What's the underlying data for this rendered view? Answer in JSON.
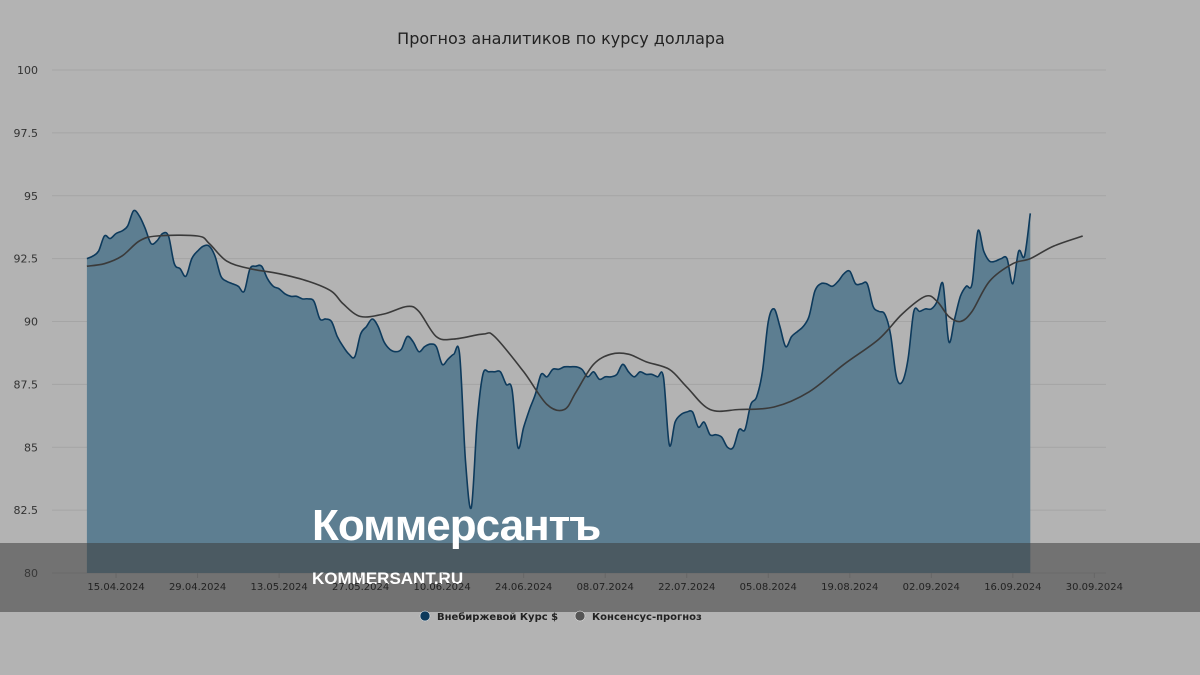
{
  "watermark": {
    "brand": "Коммерсантъ",
    "url": "KOMMERSANT.RU"
  },
  "colors": {
    "background": "#b3b3b3",
    "area_fill": "#587b8f",
    "series1_line": "#0d3a5c",
    "series2_line": "#3a3a3a",
    "grid": "#a5a5a5",
    "overlay_band": "#3d3d3d"
  },
  "chart_data": {
    "type": "area",
    "title": "Прогноз аналитиков по курсу доллара",
    "ylim": [
      80,
      100
    ],
    "yticks": [
      80,
      82.5,
      85,
      87.5,
      90,
      92.5,
      95,
      97.5,
      100
    ],
    "ytick_labels": [
      "80",
      "82.5",
      "85",
      "87.5",
      "90",
      "92.5",
      "95",
      "97.5",
      "100"
    ],
    "xlim": [
      "2024-04-04",
      "2024-10-02"
    ],
    "xticks": [
      "2024-04-15",
      "2024-04-29",
      "2024-05-13",
      "2024-05-27",
      "2024-06-10",
      "2024-06-24",
      "2024-07-08",
      "2024-07-22",
      "2024-08-05",
      "2024-08-19",
      "2024-09-02",
      "2024-09-16",
      "2024-09-30"
    ],
    "xtick_labels": [
      "15.04.2024",
      "29.04.2024",
      "13.05.2024",
      "27.05.2024",
      "10.06.2024",
      "24.06.2024",
      "08.07.2024",
      "22.07.2024",
      "05.08.2024",
      "19.08.2024",
      "02.09.2024",
      "16.09.2024",
      "30.09.2024"
    ],
    "grid": true,
    "legend_position": "bottom",
    "series": [
      {
        "name": "Внебиржевой Курс $",
        "type": "area",
        "points": [
          [
            "2024-04-10",
            92.5
          ],
          [
            "2024-04-11",
            92.6
          ],
          [
            "2024-04-12",
            92.8
          ],
          [
            "2024-04-13",
            93.4
          ],
          [
            "2024-04-14",
            93.3
          ],
          [
            "2024-04-15",
            93.5
          ],
          [
            "2024-04-16",
            93.6
          ],
          [
            "2024-04-17",
            93.8
          ],
          [
            "2024-04-18",
            94.4
          ],
          [
            "2024-04-19",
            94.2
          ],
          [
            "2024-04-20",
            93.7
          ],
          [
            "2024-04-21",
            93.1
          ],
          [
            "2024-04-22",
            93.2
          ],
          [
            "2024-04-23",
            93.5
          ],
          [
            "2024-04-24",
            93.4
          ],
          [
            "2024-04-25",
            92.3
          ],
          [
            "2024-04-26",
            92.1
          ],
          [
            "2024-04-27",
            91.8
          ],
          [
            "2024-04-28",
            92.5
          ],
          [
            "2024-04-29",
            92.8
          ],
          [
            "2024-04-30",
            93.0
          ],
          [
            "2024-05-01",
            93.0
          ],
          [
            "2024-05-02",
            92.6
          ],
          [
            "2024-05-03",
            91.8
          ],
          [
            "2024-05-04",
            91.6
          ],
          [
            "2024-05-05",
            91.5
          ],
          [
            "2024-05-06",
            91.4
          ],
          [
            "2024-05-07",
            91.2
          ],
          [
            "2024-05-08",
            92.1
          ],
          [
            "2024-05-09",
            92.2
          ],
          [
            "2024-05-10",
            92.2
          ],
          [
            "2024-05-11",
            91.7
          ],
          [
            "2024-05-12",
            91.4
          ],
          [
            "2024-05-13",
            91.3
          ],
          [
            "2024-05-14",
            91.1
          ],
          [
            "2024-05-15",
            91.0
          ],
          [
            "2024-05-16",
            91.0
          ],
          [
            "2024-05-17",
            90.9
          ],
          [
            "2024-05-18",
            90.9
          ],
          [
            "2024-05-19",
            90.8
          ],
          [
            "2024-05-20",
            90.1
          ],
          [
            "2024-05-21",
            90.1
          ],
          [
            "2024-05-22",
            90.0
          ],
          [
            "2024-05-23",
            89.4
          ],
          [
            "2024-05-24",
            89.0
          ],
          [
            "2024-05-25",
            88.7
          ],
          [
            "2024-05-26",
            88.6
          ],
          [
            "2024-05-27",
            89.5
          ],
          [
            "2024-05-28",
            89.8
          ],
          [
            "2024-05-29",
            90.1
          ],
          [
            "2024-05-30",
            89.8
          ],
          [
            "2024-05-31",
            89.2
          ],
          [
            "2024-06-01",
            88.9
          ],
          [
            "2024-06-02",
            88.8
          ],
          [
            "2024-06-03",
            88.9
          ],
          [
            "2024-06-04",
            89.4
          ],
          [
            "2024-06-05",
            89.2
          ],
          [
            "2024-06-06",
            88.8
          ],
          [
            "2024-06-07",
            89.0
          ],
          [
            "2024-06-08",
            89.1
          ],
          [
            "2024-06-09",
            89.0
          ],
          [
            "2024-06-10",
            88.3
          ],
          [
            "2024-06-11",
            88.5
          ],
          [
            "2024-06-12",
            88.7
          ],
          [
            "2024-06-13",
            88.7
          ],
          [
            "2024-06-14",
            84.5
          ],
          [
            "2024-06-15",
            82.6
          ],
          [
            "2024-06-16",
            86.0
          ],
          [
            "2024-06-17",
            87.9
          ],
          [
            "2024-06-18",
            88.0
          ],
          [
            "2024-06-19",
            88.0
          ],
          [
            "2024-06-20",
            88.0
          ],
          [
            "2024-06-21",
            87.5
          ],
          [
            "2024-06-22",
            87.3
          ],
          [
            "2024-06-23",
            85.0
          ],
          [
            "2024-06-24",
            85.8
          ],
          [
            "2024-06-25",
            86.5
          ],
          [
            "2024-06-26",
            87.1
          ],
          [
            "2024-06-27",
            87.9
          ],
          [
            "2024-06-28",
            87.8
          ],
          [
            "2024-06-29",
            88.1
          ],
          [
            "2024-06-30",
            88.1
          ],
          [
            "2024-07-01",
            88.2
          ],
          [
            "2024-07-02",
            88.2
          ],
          [
            "2024-07-03",
            88.2
          ],
          [
            "2024-07-04",
            88.1
          ],
          [
            "2024-07-05",
            87.8
          ],
          [
            "2024-07-06",
            88.0
          ],
          [
            "2024-07-07",
            87.7
          ],
          [
            "2024-07-08",
            87.8
          ],
          [
            "2024-07-09",
            87.8
          ],
          [
            "2024-07-10",
            87.9
          ],
          [
            "2024-07-11",
            88.3
          ],
          [
            "2024-07-12",
            88.0
          ],
          [
            "2024-07-13",
            87.8
          ],
          [
            "2024-07-14",
            88.0
          ],
          [
            "2024-07-15",
            87.9
          ],
          [
            "2024-07-16",
            87.9
          ],
          [
            "2024-07-17",
            87.8
          ],
          [
            "2024-07-18",
            87.8
          ],
          [
            "2024-07-19",
            85.1
          ],
          [
            "2024-07-20",
            86.0
          ],
          [
            "2024-07-21",
            86.3
          ],
          [
            "2024-07-22",
            86.4
          ],
          [
            "2024-07-23",
            86.4
          ],
          [
            "2024-07-24",
            85.8
          ],
          [
            "2024-07-25",
            86.0
          ],
          [
            "2024-07-26",
            85.5
          ],
          [
            "2024-07-27",
            85.5
          ],
          [
            "2024-07-28",
            85.4
          ],
          [
            "2024-07-29",
            85.0
          ],
          [
            "2024-07-30",
            85.0
          ],
          [
            "2024-07-31",
            85.7
          ],
          [
            "2024-08-01",
            85.7
          ],
          [
            "2024-08-02",
            86.7
          ],
          [
            "2024-08-03",
            87.0
          ],
          [
            "2024-08-04",
            88.0
          ],
          [
            "2024-08-05",
            90.0
          ],
          [
            "2024-08-06",
            90.5
          ],
          [
            "2024-08-07",
            89.8
          ],
          [
            "2024-08-08",
            89.0
          ],
          [
            "2024-08-09",
            89.4
          ],
          [
            "2024-08-10",
            89.6
          ],
          [
            "2024-08-11",
            89.8
          ],
          [
            "2024-08-12",
            90.2
          ],
          [
            "2024-08-13",
            91.2
          ],
          [
            "2024-08-14",
            91.5
          ],
          [
            "2024-08-15",
            91.5
          ],
          [
            "2024-08-16",
            91.4
          ],
          [
            "2024-08-17",
            91.6
          ],
          [
            "2024-08-18",
            91.9
          ],
          [
            "2024-08-19",
            92.0
          ],
          [
            "2024-08-20",
            91.5
          ],
          [
            "2024-08-21",
            91.5
          ],
          [
            "2024-08-22",
            91.5
          ],
          [
            "2024-08-23",
            90.6
          ],
          [
            "2024-08-24",
            90.4
          ],
          [
            "2024-08-25",
            90.3
          ],
          [
            "2024-08-26",
            89.5
          ],
          [
            "2024-08-27",
            87.8
          ],
          [
            "2024-08-28",
            87.6
          ],
          [
            "2024-08-29",
            88.5
          ],
          [
            "2024-08-30",
            90.4
          ],
          [
            "2024-08-31",
            90.4
          ],
          [
            "2024-09-01",
            90.5
          ],
          [
            "2024-09-02",
            90.5
          ],
          [
            "2024-09-03",
            90.8
          ],
          [
            "2024-09-04",
            91.5
          ],
          [
            "2024-09-05",
            89.2
          ],
          [
            "2024-09-06",
            90.1
          ],
          [
            "2024-09-07",
            91.0
          ],
          [
            "2024-09-08",
            91.4
          ],
          [
            "2024-09-09",
            91.5
          ],
          [
            "2024-09-10",
            93.6
          ],
          [
            "2024-09-11",
            92.8
          ],
          [
            "2024-09-12",
            92.4
          ],
          [
            "2024-09-13",
            92.4
          ],
          [
            "2024-09-14",
            92.5
          ],
          [
            "2024-09-15",
            92.5
          ],
          [
            "2024-09-16",
            91.5
          ],
          [
            "2024-09-17",
            92.8
          ],
          [
            "2024-09-18",
            92.6
          ],
          [
            "2024-09-19",
            94.3
          ]
        ]
      },
      {
        "name": "Консенсус-прогноз",
        "type": "line",
        "points": [
          [
            "2024-04-10",
            92.2
          ],
          [
            "2024-04-13",
            92.3
          ],
          [
            "2024-04-16",
            92.6
          ],
          [
            "2024-04-19",
            93.2
          ],
          [
            "2024-04-22",
            93.4
          ],
          [
            "2024-04-29",
            93.4
          ],
          [
            "2024-05-01",
            93.1
          ],
          [
            "2024-05-04",
            92.4
          ],
          [
            "2024-05-08",
            92.1
          ],
          [
            "2024-05-13",
            91.9
          ],
          [
            "2024-05-18",
            91.6
          ],
          [
            "2024-05-22",
            91.2
          ],
          [
            "2024-05-24",
            90.7
          ],
          [
            "2024-05-27",
            90.2
          ],
          [
            "2024-05-31",
            90.3
          ],
          [
            "2024-06-04",
            90.6
          ],
          [
            "2024-06-06",
            90.4
          ],
          [
            "2024-06-09",
            89.4
          ],
          [
            "2024-06-12",
            89.3
          ],
          [
            "2024-06-17",
            89.5
          ],
          [
            "2024-06-19",
            89.4
          ],
          [
            "2024-06-24",
            88.0
          ],
          [
            "2024-06-28",
            86.7
          ],
          [
            "2024-07-01",
            86.5
          ],
          [
            "2024-07-03",
            87.2
          ],
          [
            "2024-07-06",
            88.3
          ],
          [
            "2024-07-09",
            88.7
          ],
          [
            "2024-07-12",
            88.7
          ],
          [
            "2024-07-15",
            88.4
          ],
          [
            "2024-07-19",
            88.1
          ],
          [
            "2024-07-22",
            87.4
          ],
          [
            "2024-07-26",
            86.5
          ],
          [
            "2024-07-31",
            86.5
          ],
          [
            "2024-08-06",
            86.6
          ],
          [
            "2024-08-12",
            87.2
          ],
          [
            "2024-08-18",
            88.3
          ],
          [
            "2024-08-24",
            89.3
          ],
          [
            "2024-08-28",
            90.3
          ],
          [
            "2024-09-01",
            91.0
          ],
          [
            "2024-09-03",
            90.8
          ],
          [
            "2024-09-05",
            90.2
          ],
          [
            "2024-09-07",
            90.0
          ],
          [
            "2024-09-09",
            90.4
          ],
          [
            "2024-09-12",
            91.6
          ],
          [
            "2024-09-16",
            92.3
          ],
          [
            "2024-09-19",
            92.5
          ],
          [
            "2024-09-23",
            93.0
          ],
          [
            "2024-09-28",
            93.4
          ]
        ]
      }
    ]
  }
}
